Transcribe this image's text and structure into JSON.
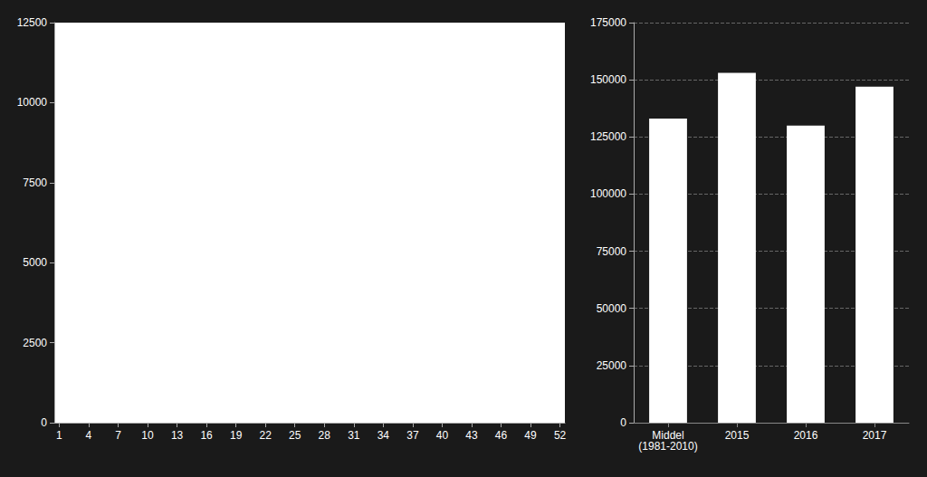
{
  "chart_data": [
    {
      "type": "line",
      "series": [],
      "xlim": [
        0.5,
        52.5
      ],
      "xticks": [
        1,
        4,
        7,
        10,
        13,
        16,
        19,
        22,
        25,
        28,
        31,
        34,
        37,
        40,
        43,
        46,
        49,
        52
      ],
      "ylim": [
        0,
        12500
      ],
      "yticks": [
        0,
        2500,
        5000,
        7500,
        10000,
        12500
      ],
      "grid": false
    },
    {
      "type": "bar",
      "categories": [
        "Middel\n(1981-2010)",
        "2015",
        "2016",
        "2017"
      ],
      "values": [
        133000,
        153000,
        130000,
        147000
      ],
      "color": "#ffffff",
      "ylim": [
        0,
        175000
      ],
      "yticks": [
        0,
        25000,
        50000,
        75000,
        100000,
        125000,
        150000,
        175000
      ],
      "grid": true
    }
  ]
}
